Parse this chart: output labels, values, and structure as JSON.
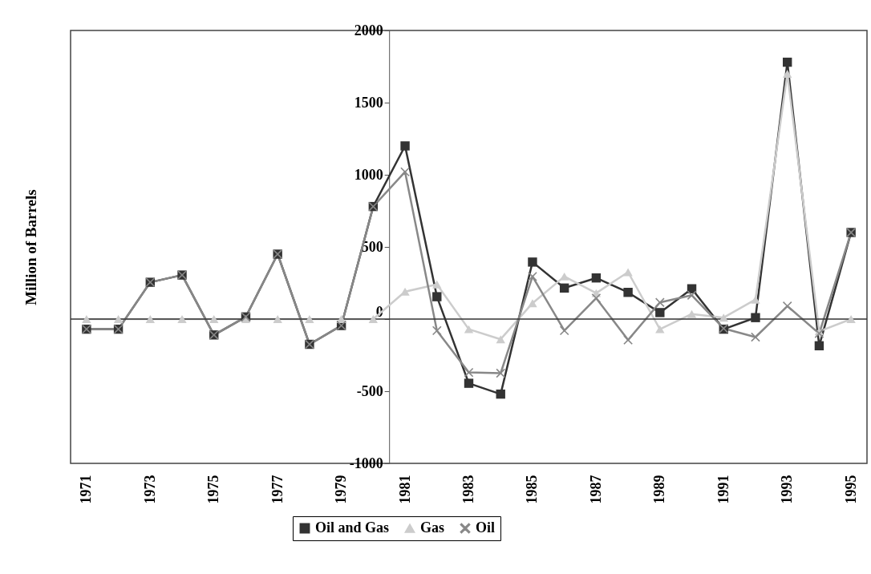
{
  "chart_data": {
    "type": "line",
    "ylabel": "Million of Barrels",
    "categories": [
      "1971",
      null,
      "1973",
      null,
      "1975",
      null,
      "1977",
      null,
      "1979",
      null,
      "1981",
      null,
      "1983",
      null,
      "1985",
      null,
      "1987",
      null,
      "1989",
      null,
      "1991",
      null,
      "1993",
      null,
      "1995"
    ],
    "series": [
      {
        "name": "Oil and Gas",
        "color": "#333333",
        "marker": "square",
        "values": [
          -70,
          -70,
          255,
          305,
          -110,
          15,
          450,
          -175,
          -45,
          780,
          1200,
          155,
          -445,
          -520,
          395,
          215,
          285,
          185,
          45,
          210,
          -70,
          10,
          1780,
          -185,
          600
        ]
      },
      {
        "name": "Gas",
        "color": "#cccccc",
        "marker": "triangle",
        "values": [
          0,
          0,
          0,
          0,
          0,
          0,
          0,
          0,
          0,
          0,
          190,
          240,
          -70,
          -140,
          110,
          295,
          180,
          325,
          -70,
          35,
          10,
          135,
          1700,
          -85,
          0
        ]
      },
      {
        "name": "Oil",
        "color": "#888888",
        "marker": "cross",
        "values": [
          -70,
          -70,
          255,
          305,
          -110,
          15,
          450,
          -175,
          -45,
          780,
          1020,
          -80,
          -370,
          -375,
          295,
          -80,
          145,
          -145,
          115,
          165,
          -65,
          -125,
          90,
          -100,
          600
        ]
      }
    ],
    "ylim": [
      -1000,
      2000
    ],
    "yticks": [
      -1000,
      -500,
      0,
      500,
      1000,
      1500,
      2000
    ],
    "ref_lines": [
      {
        "axis": "y",
        "value": 0,
        "color": "#333333"
      }
    ],
    "legend": "bottom",
    "grid": false
  }
}
